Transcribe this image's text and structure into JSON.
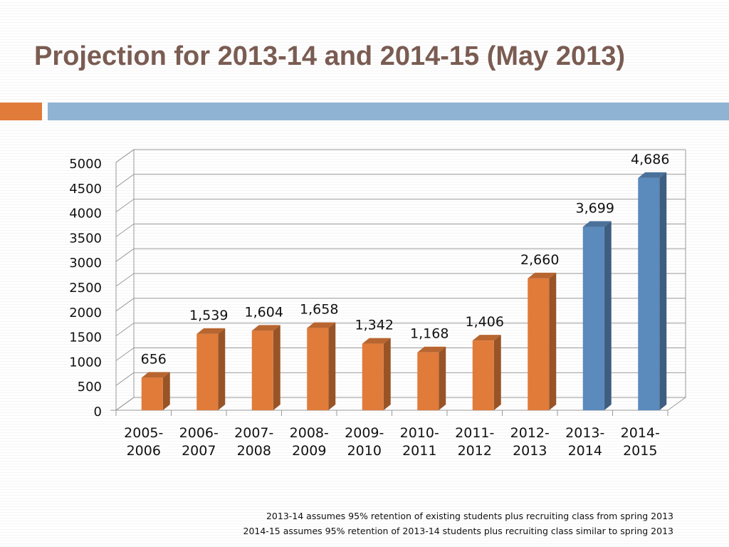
{
  "slide": {
    "title": "Projection for 2013-14 and 2014-15 (May 2013)",
    "notes": [
      "2013-14 assumes 95% retention of existing students plus recruiting class from spring 2013",
      "2014-15 assumes 95% retention of 2013-14 students plus recruiting class similar to spring 2013"
    ]
  },
  "colors": {
    "title": "#7a5c52",
    "rule_orange": "#e07b3a",
    "rule_blue": "#8fb3d3",
    "bar_actual": "#e07b3a",
    "bar_projected": "#5b8abd"
  },
  "chart_data": {
    "type": "bar",
    "three_d": true,
    "categories": [
      [
        "2005-",
        "2006"
      ],
      [
        "2006-",
        "2007"
      ],
      [
        "2007-",
        "2008"
      ],
      [
        "2008-",
        "2009"
      ],
      [
        "2009-",
        "2010"
      ],
      [
        "2010-",
        "2011"
      ],
      [
        "2011-",
        "2012"
      ],
      [
        "2012-",
        "2013"
      ],
      [
        "2013-",
        "2014"
      ],
      [
        "2014-",
        "2015"
      ]
    ],
    "values": [
      656,
      1539,
      1604,
      1658,
      1342,
      1168,
      1406,
      2660,
      3699,
      4686
    ],
    "data_labels": [
      "656",
      "1,539",
      "1,604",
      "1,658",
      "1,342",
      "1,168",
      "1,406",
      "2,660",
      "3,699",
      "4,686"
    ],
    "bar_colors": [
      "#e07b3a",
      "#e07b3a",
      "#e07b3a",
      "#e07b3a",
      "#e07b3a",
      "#e07b3a",
      "#e07b3a",
      "#e07b3a",
      "#5b8abd",
      "#5b8abd"
    ],
    "ylim": [
      0,
      5000
    ],
    "yticks": [
      0,
      500,
      1000,
      1500,
      2000,
      2500,
      3000,
      3500,
      4000,
      4500,
      5000
    ],
    "grid": true,
    "title": "",
    "xlabel": "",
    "ylabel": ""
  }
}
